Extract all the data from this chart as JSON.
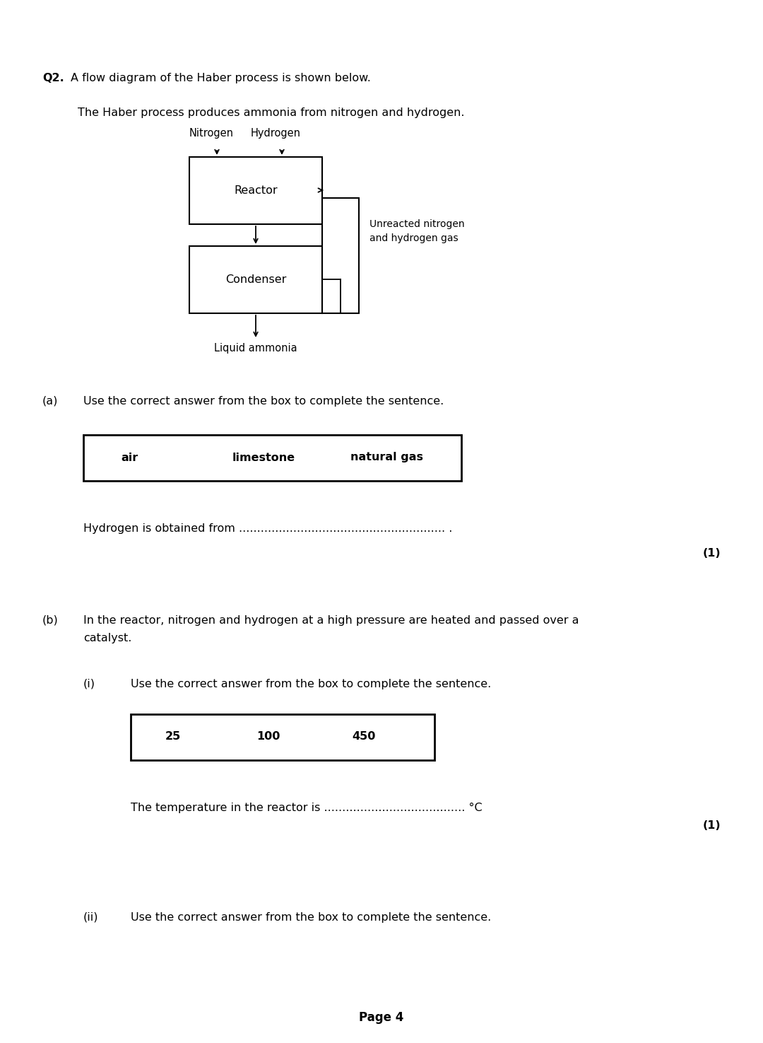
{
  "bg_color": "#ffffff",
  "page_width": 10.8,
  "page_height": 14.75,
  "q2_label": "Q2.",
  "q2_text": "A flow diagram of the Haber process is shown below.",
  "intro_text": "The Haber process produces ammonia from nitrogen and hydrogen.",
  "reactor_label": "Reactor",
  "condenser_label": "Condenser",
  "nitrogen_label": "Nitrogen",
  "hydrogen_label": "Hydrogen",
  "liquid_ammonia_label": "Liquid ammonia",
  "unreacted_label": "Unreacted nitrogen\nand hydrogen gas",
  "part_a_label": "(a)",
  "part_a_text": "Use the correct answer from the box to complete the sentence.",
  "box_a_items": [
    "air",
    "limestone",
    "natural gas"
  ],
  "sentence_a": "Hydrogen is obtained from ......................................................... .",
  "mark_a": "(1)",
  "part_b_label": "(b)",
  "part_b_line1": "In the reactor, nitrogen and hydrogen at a high pressure are heated and passed over a",
  "part_b_line2": "catalyst.",
  "part_bi_label": "(i)",
  "part_bi_text": "Use the correct answer from the box to complete the sentence.",
  "box_bi_items": [
    "25",
    "100",
    "450"
  ],
  "sentence_bi": "The temperature in the reactor is ....................................... °C",
  "mark_bi": "(1)",
  "part_bii_label": "(ii)",
  "part_bii_text": "Use the correct answer from the box to complete the sentence.",
  "page_label": "Page 4"
}
